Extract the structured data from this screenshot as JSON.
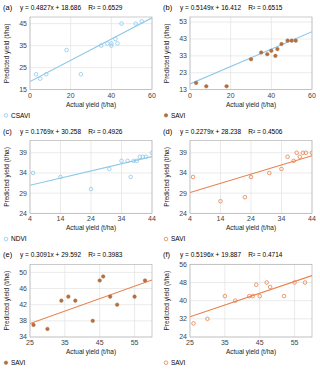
{
  "chart_data": [
    {
      "type": "scatter",
      "title": "(a)",
      "annotation": "y = 0.4827x + 18.686    R² = 0.6529",
      "xlabel": "Actual yield (t/ha)",
      "ylabel": "Predicted yield (t/ha)",
      "xlim": [
        0,
        60
      ],
      "ylim": [
        15,
        48
      ],
      "xticks": [
        0,
        20,
        40,
        60
      ],
      "yticks": [
        15,
        25,
        35,
        45
      ],
      "grid": true,
      "legend": "bottom",
      "series": [
        {
          "name": "CSAVI",
          "type": "scatter",
          "color": "#8ec8e8",
          "marker": "open",
          "x": [
            3,
            5,
            8,
            18,
            25,
            35,
            38,
            40,
            40,
            42,
            43,
            45,
            52,
            55
          ],
          "values": [
            22,
            20,
            22,
            33,
            22,
            35,
            36,
            36,
            35,
            38,
            36,
            45,
            45,
            46
          ]
        },
        {
          "type": "line",
          "color": "#8ec8e8",
          "line_style": "solid",
          "x": [
            0,
            60
          ],
          "values": [
            18.686,
            47.648
          ]
        }
      ]
    },
    {
      "type": "scatter",
      "title": "(b)",
      "annotation": "y = 0.5149x + 16.412    R² = 0.6515",
      "xlabel": "Actual yield (t/ha)",
      "ylabel": "Predicted yield (t/ha)",
      "xlim": [
        0,
        60
      ],
      "ylim": [
        13,
        56
      ],
      "xticks": [
        0,
        20,
        40,
        60
      ],
      "yticks": [
        13,
        23,
        33,
        43,
        53
      ],
      "grid": true,
      "legend": "bottom",
      "series": [
        {
          "name": "SAVI",
          "type": "scatter",
          "color": "#b07040",
          "marker": "filled",
          "x": [
            3,
            8,
            18,
            30,
            35,
            38,
            40,
            42,
            43,
            45,
            48,
            50,
            52
          ],
          "values": [
            17,
            15,
            15,
            31,
            35,
            34,
            36,
            33,
            37,
            40,
            42,
            42,
            42
          ]
        },
        {
          "type": "line",
          "color": "#8ec8e8",
          "line_style": "solid",
          "x": [
            0,
            60
          ],
          "values": [
            16.412,
            47.306
          ]
        }
      ]
    },
    {
      "type": "scatter",
      "title": "(c)",
      "annotation": "y = 0.1769x + 30.258    R² = 0.4926",
      "xlabel": "Actual yield (t/ha)",
      "ylabel": "Predicted yield (t/ha)",
      "xlim": [
        4,
        44
      ],
      "ylim": [
        24,
        42
      ],
      "xticks": [
        4,
        14,
        24,
        34,
        44
      ],
      "yticks": [
        24,
        29,
        34,
        39
      ],
      "grid": true,
      "legend": "bottom",
      "series": [
        {
          "name": "NDVI",
          "type": "scatter",
          "color": "#8ec8e8",
          "marker": "open",
          "x": [
            5,
            14,
            24,
            30,
            34,
            36,
            37,
            38,
            39,
            40,
            41,
            42,
            44
          ],
          "values": [
            34,
            33,
            30,
            35,
            37,
            37,
            33,
            37,
            37,
            38,
            38,
            38,
            39
          ]
        },
        {
          "type": "line",
          "color": "#8ec8e8",
          "line_style": "solid",
          "x": [
            4,
            44
          ],
          "values": [
            30.9656,
            38.0416
          ]
        }
      ]
    },
    {
      "type": "scatter",
      "title": "(d)",
      "annotation": "y = 0.2279x + 28.238    R² = 0.4506",
      "xlabel": "Actual yield (t/ha)",
      "ylabel": "Predicted yield (t/ha)",
      "xlim": [
        4,
        44
      ],
      "ylim": [
        24,
        42
      ],
      "xticks": [
        4,
        14,
        24,
        34,
        44
      ],
      "yticks": [
        24,
        29,
        34,
        39
      ],
      "grid": true,
      "legend": "bottom",
      "series": [
        {
          "name": "SAVI",
          "type": "scatter",
          "color": "#e8804a",
          "marker": "open",
          "x": [
            5,
            14,
            22,
            24,
            30,
            34,
            36,
            38,
            39,
            40,
            41,
            42,
            44
          ],
          "values": [
            33,
            27,
            28,
            33,
            34,
            35,
            38,
            37,
            39,
            38,
            39,
            39,
            39
          ]
        },
        {
          "type": "line",
          "color": "#e8804a",
          "line_style": "solid",
          "x": [
            4,
            44
          ],
          "values": [
            29.1496,
            38.2656
          ]
        }
      ]
    },
    {
      "type": "scatter",
      "title": "(e)",
      "annotation": "y = 0.3091x + 29.592    R² = 0.3983",
      "xlabel": "Actual yield (t/ha)",
      "ylabel": "Predicted yield (t/ha)",
      "xlim": [
        25,
        60
      ],
      "ylim": [
        34,
        52
      ],
      "xticks": [
        25,
        35,
        45,
        55
      ],
      "yticks": [
        34,
        38,
        42,
        46,
        50
      ],
      "grid": true,
      "legend": "bottom",
      "series": [
        {
          "name": "SAVI",
          "type": "scatter",
          "color": "#b07040",
          "marker": "filled",
          "x": [
            26,
            30,
            34,
            36,
            38,
            43,
            45,
            46,
            48,
            50,
            55,
            58
          ],
          "values": [
            37,
            36,
            43,
            44,
            43,
            38,
            48,
            49,
            44,
            42,
            44,
            48
          ]
        },
        {
          "type": "line",
          "color": "#e8804a",
          "line_style": "solid",
          "x": [
            25,
            60
          ],
          "values": [
            37.3195,
            48.138
          ]
        }
      ]
    },
    {
      "type": "scatter",
      "title": "(f)",
      "annotation": "y = 0.5196x + 19.887    R² = 0.4714",
      "xlabel": "Actual yield (t/ha)",
      "ylabel": "Predicted yield (t/ha)",
      "xlim": [
        25,
        60
      ],
      "ylim": [
        24,
        56
      ],
      "xticks": [
        25,
        35,
        45,
        55
      ],
      "yticks": [
        24,
        32,
        40,
        48,
        56
      ],
      "grid": true,
      "legend": "bottom",
      "series": [
        {
          "name": "SAVI",
          "type": "scatter",
          "color": "#e8804a",
          "marker": "open",
          "x": [
            26,
            30,
            35,
            38,
            42,
            43,
            44,
            45,
            47,
            48,
            52,
            55,
            58
          ],
          "values": [
            30,
            32,
            42,
            40,
            42,
            42,
            47,
            42,
            48,
            46,
            42,
            48,
            48
          ]
        },
        {
          "type": "line",
          "color": "#e8804a",
          "line_style": "solid",
          "x": [
            25,
            60
          ],
          "values": [
            32.877,
            51.063
          ]
        }
      ]
    }
  ]
}
